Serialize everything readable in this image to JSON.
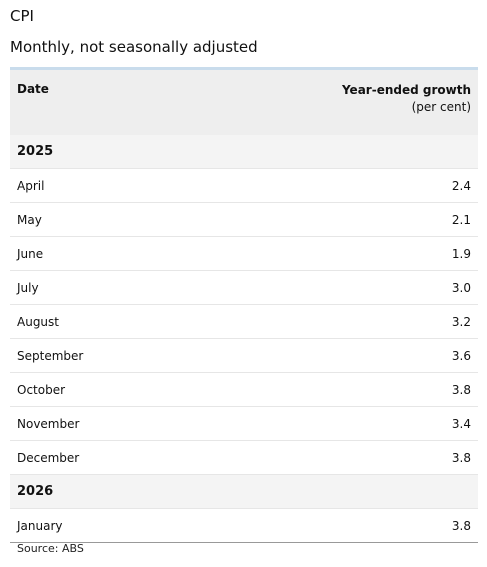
{
  "title": "CPI",
  "subtitle": "Monthly, not seasonally adjusted",
  "table": {
    "columns": {
      "date": "Date",
      "growth": "Year-ended growth",
      "growth_unit": "(per cent)"
    },
    "groups": [
      {
        "year": "2025",
        "rows": [
          {
            "month": "April",
            "value": "2.4"
          },
          {
            "month": "May",
            "value": "2.1"
          },
          {
            "month": "June",
            "value": "1.9"
          },
          {
            "month": "July",
            "value": "3.0"
          },
          {
            "month": "August",
            "value": "3.2"
          },
          {
            "month": "September",
            "value": "3.6"
          },
          {
            "month": "October",
            "value": "3.8"
          },
          {
            "month": "November",
            "value": "3.4"
          },
          {
            "month": "December",
            "value": "3.8"
          }
        ]
      },
      {
        "year": "2026",
        "rows": [
          {
            "month": "January",
            "value": "3.8"
          }
        ]
      }
    ]
  },
  "source": "Source: ABS"
}
